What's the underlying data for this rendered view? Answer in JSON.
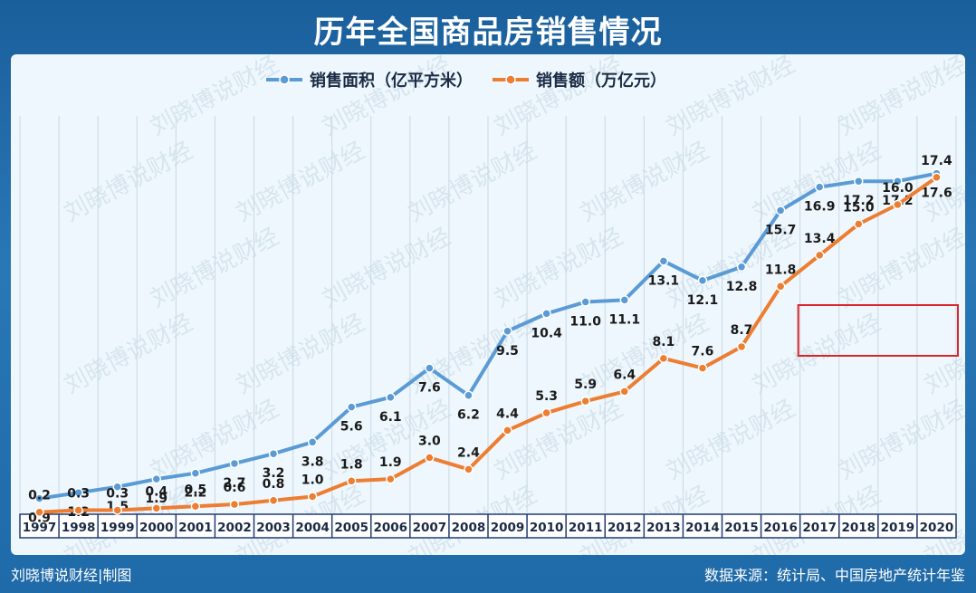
{
  "page": {
    "title": "历年全国商品房销售情况",
    "credit": "刘晓博说财经|制图",
    "source": "数据来源：统计局、中国房地产统计年鉴",
    "watermark": "刘晓博说财经"
  },
  "chart_data": {
    "type": "line",
    "title": "历年全国商品房销售情况",
    "categories": [
      "1997",
      "1998",
      "1999",
      "2000",
      "2001",
      "2002",
      "2003",
      "2004",
      "2005",
      "2006",
      "2007",
      "2008",
      "2009",
      "2010",
      "2011",
      "2012",
      "2013",
      "2014",
      "2015",
      "2016",
      "2017",
      "2018",
      "2019",
      "2020"
    ],
    "series": [
      {
        "name": "销售面积（亿平方米）",
        "color": "#5b9bd5",
        "values": [
          0.9,
          1.2,
          1.5,
          1.9,
          2.2,
          2.7,
          3.2,
          3.8,
          5.6,
          6.1,
          7.6,
          6.2,
          9.5,
          10.4,
          11.0,
          11.1,
          13.1,
          12.1,
          12.8,
          15.7,
          16.9,
          17.2,
          17.2,
          17.6
        ],
        "labels": [
          "0.9",
          "1.2",
          "1.5",
          "1.9",
          "2.2",
          "2.7",
          "3.2",
          "3.8",
          "5.6",
          "6.1",
          "7.6",
          "6.2",
          "9.5",
          "10.4",
          "11.0",
          "11.1",
          "13.1",
          "12.1",
          "12.8",
          "15.7",
          "16.9",
          "17.2",
          "17.2",
          "17.6"
        ]
      },
      {
        "name": "销售额（万亿元）",
        "color": "#ed7d31",
        "values": [
          0.2,
          0.3,
          0.3,
          0.4,
          0.5,
          0.6,
          0.8,
          1.0,
          1.8,
          1.9,
          3.0,
          2.4,
          4.4,
          5.3,
          5.9,
          6.4,
          8.1,
          7.6,
          8.7,
          11.8,
          13.4,
          15.0,
          16.0,
          17.4
        ],
        "labels": [
          "0.2",
          "0.3",
          "0.3",
          "0.4",
          "0.5",
          "0.6",
          "0.8",
          "1.0",
          "1.8",
          "1.9",
          "3.0",
          "2.4",
          "4.4",
          "5.3",
          "5.9",
          "6.4",
          "8.1",
          "7.6",
          "8.7",
          "11.8",
          "13.4",
          "15.0",
          "16.0",
          "17.4"
        ]
      }
    ],
    "ylim": [
      0,
      20
    ],
    "grid": true,
    "legend": "top-center",
    "highlight": {
      "from": "2017",
      "to": "2020",
      "series": "销售面积（亿平方米）",
      "color": "#d9262c"
    }
  }
}
